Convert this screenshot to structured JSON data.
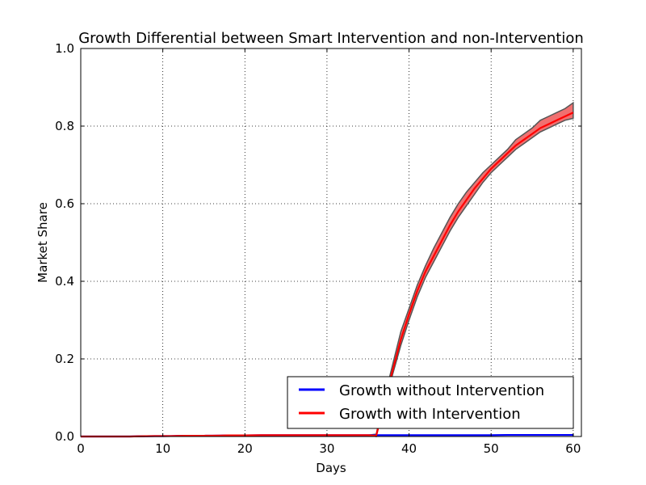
{
  "chart_data": {
    "type": "line",
    "title": "Growth Differential between Smart Intervention and non-Intervention",
    "xlabel": "Days",
    "ylabel": "Market Share",
    "xlim": [
      0,
      61
    ],
    "ylim": [
      0.0,
      1.0
    ],
    "xticks": [
      0,
      10,
      20,
      30,
      40,
      50,
      60
    ],
    "xtick_labels": [
      "0",
      "10",
      "20",
      "30",
      "40",
      "50",
      "60"
    ],
    "yticks": [
      0.0,
      0.2,
      0.4,
      0.6,
      0.8,
      1.0
    ],
    "ytick_labels": [
      "0.0",
      "0.2",
      "0.4",
      "0.6",
      "0.8",
      "1.0"
    ],
    "grid": true,
    "legend_position": "lower right",
    "x": [
      0,
      1,
      2,
      3,
      4,
      5,
      6,
      7,
      8,
      9,
      10,
      11,
      12,
      13,
      14,
      15,
      16,
      17,
      18,
      19,
      20,
      21,
      22,
      23,
      24,
      25,
      26,
      27,
      28,
      29,
      30,
      31,
      32,
      33,
      34,
      35,
      36,
      37,
      38,
      39,
      40,
      41,
      42,
      43,
      44,
      45,
      46,
      47,
      48,
      49,
      50,
      51,
      52,
      53,
      54,
      55,
      56,
      57,
      58,
      59,
      60
    ],
    "series": [
      {
        "name": "Growth without Intervention",
        "color": "#0000ff",
        "values": [
          0.0,
          0.0,
          0.0,
          0.0,
          0.0,
          0.0,
          0.0,
          0.0005,
          0.0008,
          0.001,
          0.001,
          0.0012,
          0.0015,
          0.0018,
          0.002,
          0.002,
          0.0022,
          0.0025,
          0.0028,
          0.003,
          0.003,
          0.0032,
          0.0035,
          0.0035,
          0.0035,
          0.0035,
          0.0035,
          0.0035,
          0.0035,
          0.0035,
          0.0035,
          0.0035,
          0.0035,
          0.0035,
          0.0035,
          0.0035,
          0.0035,
          0.0035,
          0.0035,
          0.0035,
          0.0035,
          0.0035,
          0.0035,
          0.0035,
          0.0035,
          0.0035,
          0.0035,
          0.0035,
          0.0035,
          0.0035,
          0.0035,
          0.0038,
          0.004,
          0.004,
          0.004,
          0.004,
          0.004,
          0.004,
          0.004,
          0.004,
          0.004
        ],
        "lower": [
          0.0,
          0.0,
          0.0,
          0.0,
          0.0,
          0.0,
          0.0,
          0.0003,
          0.0006,
          0.0008,
          0.0008,
          0.001,
          0.0013,
          0.0016,
          0.0018,
          0.0018,
          0.002,
          0.0023,
          0.0026,
          0.0028,
          0.0028,
          0.003,
          0.0033,
          0.0033,
          0.0033,
          0.0033,
          0.0033,
          0.0033,
          0.0033,
          0.0033,
          0.0033,
          0.0033,
          0.0033,
          0.0033,
          0.0033,
          0.0033,
          0.0033,
          0.0033,
          0.0033,
          0.0033,
          0.0033,
          0.0033,
          0.0033,
          0.0033,
          0.0033,
          0.0033,
          0.0033,
          0.0033,
          0.0033,
          0.0033,
          0.0033,
          0.0036,
          0.0038,
          0.0038,
          0.0038,
          0.0038,
          0.0038,
          0.0038,
          0.0038,
          0.0038,
          0.0038
        ],
        "upper": [
          0.0,
          0.0,
          0.0,
          0.0,
          0.0,
          0.0,
          0.0,
          0.0007,
          0.001,
          0.0012,
          0.0012,
          0.0014,
          0.0017,
          0.002,
          0.0022,
          0.0022,
          0.0024,
          0.0027,
          0.003,
          0.0032,
          0.0032,
          0.0034,
          0.0037,
          0.0037,
          0.0037,
          0.0037,
          0.0037,
          0.0037,
          0.0037,
          0.0037,
          0.0037,
          0.0037,
          0.0037,
          0.0037,
          0.0037,
          0.0037,
          0.0037,
          0.0037,
          0.0037,
          0.0037,
          0.0037,
          0.0037,
          0.0037,
          0.0037,
          0.0037,
          0.0037,
          0.0037,
          0.0037,
          0.0037,
          0.0037,
          0.0037,
          0.004,
          0.0042,
          0.0042,
          0.0042,
          0.0042,
          0.0042,
          0.0042,
          0.0042,
          0.0042,
          0.0042
        ]
      },
      {
        "name": "Growth with Intervention",
        "color": "#ff0000",
        "band_color": "#f07070",
        "values": [
          0.0,
          0.0,
          0.0,
          0.0,
          0.0,
          0.0,
          0.0,
          0.0005,
          0.0008,
          0.001,
          0.001,
          0.0012,
          0.0015,
          0.0018,
          0.002,
          0.002,
          0.0022,
          0.0025,
          0.0028,
          0.003,
          0.003,
          0.0032,
          0.0035,
          0.0035,
          0.0035,
          0.0035,
          0.0035,
          0.0035,
          0.0035,
          0.0035,
          0.0035,
          0.0035,
          0.0035,
          0.0035,
          0.0035,
          0.0035,
          0.002,
          0.09,
          0.17,
          0.25,
          0.315,
          0.375,
          0.425,
          0.465,
          0.505,
          0.545,
          0.58,
          0.61,
          0.64,
          0.665,
          0.69,
          0.71,
          0.73,
          0.75,
          0.765,
          0.78,
          0.795,
          0.805,
          0.815,
          0.825,
          0.835
        ],
        "lower": [
          0.0,
          0.0,
          0.0,
          0.0,
          0.0,
          0.0,
          0.0,
          0.0003,
          0.0006,
          0.0008,
          0.0008,
          0.001,
          0.0013,
          0.0016,
          0.0018,
          0.0018,
          0.002,
          0.0023,
          0.0026,
          0.0028,
          0.0028,
          0.003,
          0.0033,
          0.0033,
          0.0033,
          0.0033,
          0.0033,
          0.0033,
          0.0033,
          0.0033,
          0.0033,
          0.0033,
          0.0033,
          0.0033,
          0.0033,
          0.0033,
          0.0,
          0.08,
          0.16,
          0.235,
          0.3,
          0.36,
          0.41,
          0.45,
          0.49,
          0.53,
          0.565,
          0.595,
          0.625,
          0.655,
          0.68,
          0.7,
          0.72,
          0.74,
          0.755,
          0.77,
          0.785,
          0.795,
          0.805,
          0.815,
          0.82
        ],
        "upper": [
          0.0,
          0.0,
          0.0,
          0.0,
          0.0,
          0.0,
          0.0,
          0.0007,
          0.001,
          0.0012,
          0.0012,
          0.0014,
          0.0017,
          0.002,
          0.0022,
          0.0022,
          0.0024,
          0.0027,
          0.003,
          0.0032,
          0.0032,
          0.0034,
          0.0037,
          0.0037,
          0.0037,
          0.0037,
          0.0037,
          0.0037,
          0.0037,
          0.0037,
          0.0037,
          0.0037,
          0.0037,
          0.0037,
          0.0037,
          0.0037,
          0.006,
          0.1,
          0.185,
          0.27,
          0.33,
          0.39,
          0.44,
          0.485,
          0.525,
          0.565,
          0.6,
          0.63,
          0.655,
          0.68,
          0.7,
          0.72,
          0.74,
          0.765,
          0.78,
          0.795,
          0.815,
          0.825,
          0.835,
          0.845,
          0.86
        ]
      }
    ]
  }
}
